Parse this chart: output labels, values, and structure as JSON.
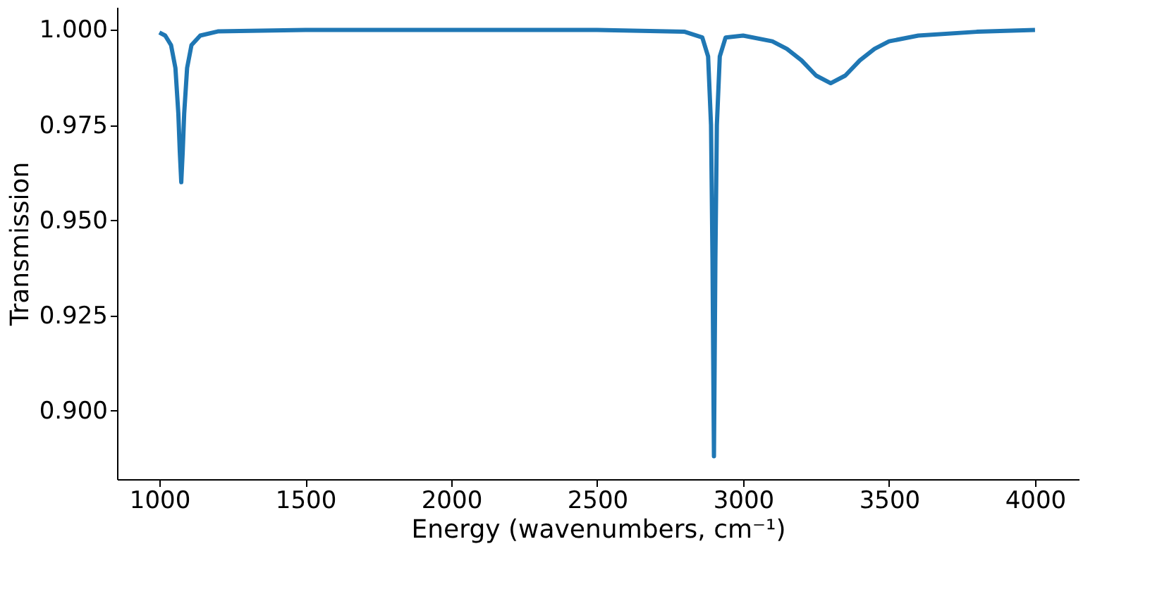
{
  "chart_data": {
    "type": "line",
    "xlabel": "Energy (wavenumbers, cm⁻¹)",
    "ylabel": "Transmission",
    "x": [
      1000,
      1020,
      1040,
      1055,
      1065,
      1070,
      1075,
      1080,
      1085,
      1095,
      1110,
      1140,
      1200,
      1500,
      2000,
      2500,
      2800,
      2860,
      2880,
      2890,
      2895,
      2900,
      2905,
      2910,
      2920,
      2940,
      3000,
      3100,
      3150,
      3200,
      3250,
      3300,
      3350,
      3400,
      3450,
      3500,
      3600,
      3800,
      4000
    ],
    "series": [
      {
        "color": "#1f77b4",
        "values": [
          0.9993,
          0.9985,
          0.996,
          0.99,
          0.978,
          0.968,
          0.96,
          0.968,
          0.978,
          0.99,
          0.996,
          0.9985,
          0.9996,
          1.0,
          1.0,
          1.0,
          0.9995,
          0.998,
          0.993,
          0.975,
          0.94,
          0.888,
          0.94,
          0.975,
          0.993,
          0.998,
          0.9985,
          0.997,
          0.995,
          0.992,
          0.988,
          0.986,
          0.988,
          0.992,
          0.995,
          0.997,
          0.9985,
          0.9995,
          1.0
        ]
      }
    ],
    "xlim": [
      855,
      4150
    ],
    "ylim": [
      0.882,
      1.006
    ],
    "xticks": [
      1000,
      1500,
      2000,
      2500,
      3000,
      3500,
      4000
    ],
    "yticks": [
      {
        "value": 0.9,
        "label": "0.900"
      },
      {
        "value": 0.925,
        "label": "0.925"
      },
      {
        "value": 0.95,
        "label": "0.950"
      },
      {
        "value": 0.975,
        "label": "0.975"
      },
      {
        "value": 1.0,
        "label": "1.000"
      }
    ],
    "grid": false,
    "marker": "none",
    "line_style": "solid"
  }
}
